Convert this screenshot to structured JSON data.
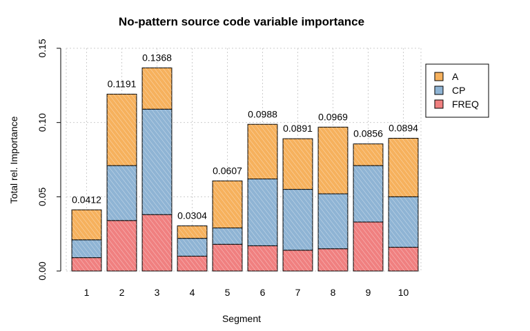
{
  "chart_data": {
    "type": "bar",
    "stacked": true,
    "title": "No-pattern source code variable importance",
    "xlabel": "Segment",
    "ylabel": "Total rel. Importance",
    "ylim": [
      0,
      0.15
    ],
    "yticks": [
      "0.00",
      "0.05",
      "0.10",
      "0.15"
    ],
    "grid": true,
    "legend_position": "top-right",
    "categories": [
      "1",
      "2",
      "3",
      "4",
      "5",
      "6",
      "7",
      "8",
      "9",
      "10"
    ],
    "totals_labels": [
      "0.0412",
      "0.1191",
      "0.1368",
      "0.0304",
      "0.0607",
      "0.0988",
      "0.0891",
      "0.0969",
      "0.0856",
      "0.0894"
    ],
    "series": [
      {
        "name": "FREQ",
        "color": "#f08080",
        "values": [
          0.009,
          0.034,
          0.038,
          0.01,
          0.018,
          0.017,
          0.014,
          0.015,
          0.033,
          0.016
        ]
      },
      {
        "name": "CP",
        "color": "#8fb4d4",
        "values": [
          0.012,
          0.037,
          0.071,
          0.012,
          0.011,
          0.045,
          0.041,
          0.037,
          0.038,
          0.034
        ]
      },
      {
        "name": "A",
        "color": "#f6b15d",
        "values": [
          0.0202,
          0.0481,
          0.0278,
          0.0084,
          0.0317,
          0.0368,
          0.0341,
          0.0449,
          0.0146,
          0.0394
        ]
      }
    ],
    "legend_order": [
      "A",
      "CP",
      "FREQ"
    ]
  }
}
